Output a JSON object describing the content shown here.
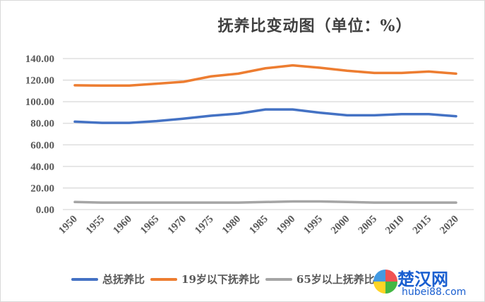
{
  "chart_data": {
    "type": "line",
    "title": "抚养比变动图（单位：%）",
    "x": [
      1950,
      1955,
      1960,
      1965,
      1970,
      1975,
      1980,
      1985,
      1990,
      1995,
      2000,
      2005,
      2010,
      2015,
      2020
    ],
    "x_tick_labels": [
      "1950",
      "1955",
      "1960",
      "1965",
      "1970",
      "1975",
      "1980",
      "1985",
      "1990",
      "1995",
      "2000",
      "2005",
      "2010",
      "2015",
      "2020"
    ],
    "y_tick_labels": [
      "0.00",
      "20.00",
      "40.00",
      "60.00",
      "80.00",
      "100.00",
      "120.00",
      "140.00"
    ],
    "ylim": [
      0,
      140
    ],
    "grid": true,
    "legend_position": "bottom",
    "series": [
      {
        "name": "总抚养比",
        "color": "#4472c4",
        "values": [
          81.5,
          80.4,
          80.4,
          82,
          84.3,
          87,
          89,
          92.8,
          92.8,
          89.8,
          87.4,
          87.4,
          88.5,
          88.5,
          86.5
        ]
      },
      {
        "name": "19岁以下抚养比",
        "color": "#ed7d31",
        "values": [
          115.2,
          115,
          115,
          116.7,
          118.5,
          123.5,
          126,
          131,
          133.7,
          131.5,
          128.7,
          126.7,
          126.7,
          128,
          126
        ]
      },
      {
        "name": "65岁以上抚养比",
        "color": "#a5a5a5",
        "values": [
          7,
          6.5,
          6.5,
          6.5,
          6.5,
          6.5,
          6.5,
          7,
          7.5,
          7.5,
          7,
          6.5,
          6.5,
          6.5,
          6.5
        ]
      }
    ]
  },
  "watermark": {
    "text": "楚汉网",
    "url_text": "hubei88.com"
  }
}
